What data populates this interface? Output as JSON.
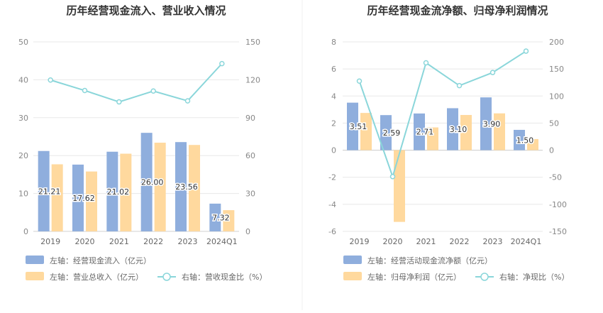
{
  "chart_data": [
    {
      "type": "bar",
      "title": "历年经营现金流入、营业收入情况",
      "categories": [
        "2019",
        "2020",
        "2021",
        "2022",
        "2023",
        "2024Q1"
      ],
      "y_left": {
        "ticks": [
          "0",
          "10",
          "20",
          "30",
          "40",
          "50"
        ],
        "ylim": [
          0,
          50
        ]
      },
      "y_right": {
        "ticks": [
          "0",
          "30",
          "60",
          "90",
          "120",
          "150"
        ],
        "ylim": [
          0,
          150
        ]
      },
      "series": [
        {
          "name": "左轴：经营现金流入（亿元）",
          "kind": "bar",
          "axis": "left",
          "color": "#8FAEDD",
          "values": [
            21.21,
            17.62,
            21.02,
            26.0,
            23.56,
            7.32
          ],
          "labels": [
            "21.21",
            "17.62",
            "21.02",
            "26.00",
            "23.56",
            "7.32"
          ]
        },
        {
          "name": "左轴：营业总收入（亿元）",
          "kind": "bar",
          "axis": "left",
          "color": "#FFD99E",
          "values": [
            17.7,
            15.8,
            20.5,
            23.4,
            22.8,
            5.6
          ]
        },
        {
          "name": "右轴：营收现金比（%）",
          "kind": "line",
          "axis": "right",
          "color": "#8AD6DA",
          "values": [
            119.8,
            111.5,
            102.5,
            111.1,
            103.3,
            132.8
          ]
        }
      ]
    },
    {
      "type": "bar",
      "title": "历年经营现金流净额、归母净利润情况",
      "categories": [
        "2019",
        "2020",
        "2021",
        "2022",
        "2023",
        "2024Q1"
      ],
      "y_left": {
        "ticks": [
          "-6",
          "-4",
          "-2",
          "0",
          "2",
          "4",
          "6",
          "8"
        ],
        "ylim": [
          -6,
          8
        ]
      },
      "y_right": {
        "ticks": [
          "-150",
          "-100",
          "-50",
          "0",
          "50",
          "100",
          "150",
          "200"
        ],
        "ylim": [
          -150,
          200
        ]
      },
      "series": [
        {
          "name": "左轴：经营活动现金流净额（亿元）",
          "kind": "bar",
          "axis": "left",
          "color": "#8FAEDD",
          "values": [
            3.51,
            2.59,
            2.71,
            3.1,
            3.9,
            1.5
          ],
          "labels": [
            "3.51",
            "2.59",
            "2.71",
            "3.10",
            "3.90",
            "1.50"
          ]
        },
        {
          "name": "左轴：归母净利润（亿元）",
          "kind": "bar",
          "axis": "left",
          "color": "#FFD99E",
          "values": [
            2.75,
            -5.3,
            1.68,
            2.6,
            2.72,
            0.82
          ]
        },
        {
          "name": "右轴：净现比（%）",
          "kind": "line",
          "axis": "right",
          "color": "#8AD6DA",
          "values": [
            127.6,
            -48.8,
            161.3,
            119.2,
            143.4,
            182.9
          ]
        }
      ]
    }
  ]
}
